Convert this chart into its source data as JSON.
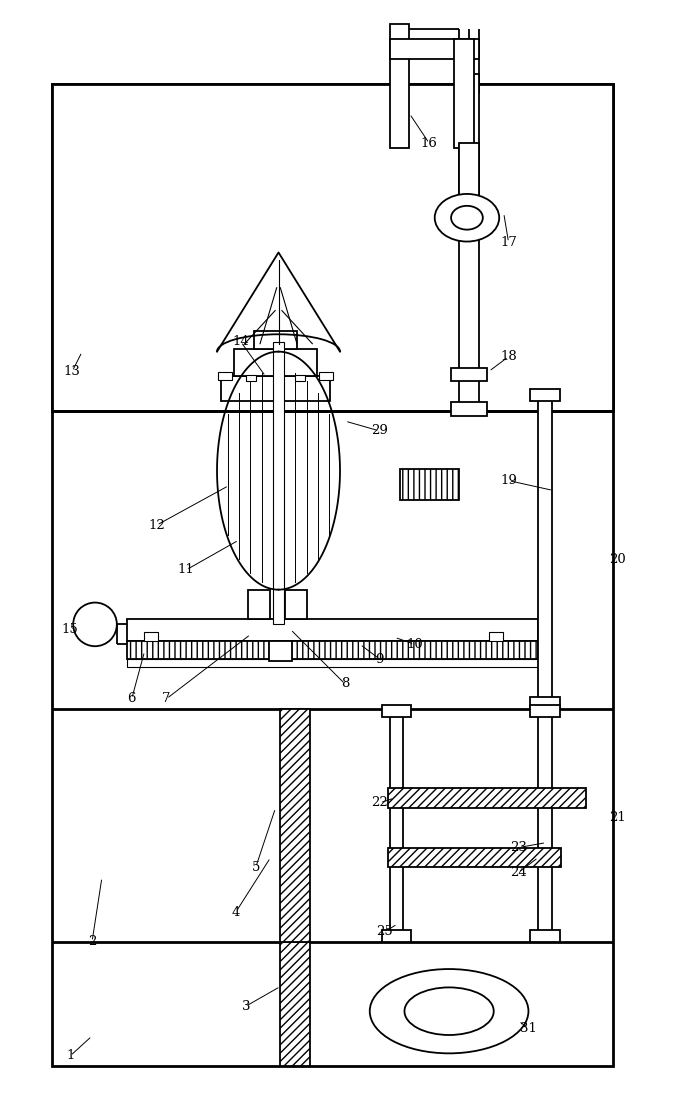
{
  "fig_width": 6.8,
  "fig_height": 11.0,
  "dpi": 100,
  "bg_color": "#ffffff",
  "lc": "#000000",
  "lw": 1.3,
  "thin": 0.8,
  "thick": 2.0
}
